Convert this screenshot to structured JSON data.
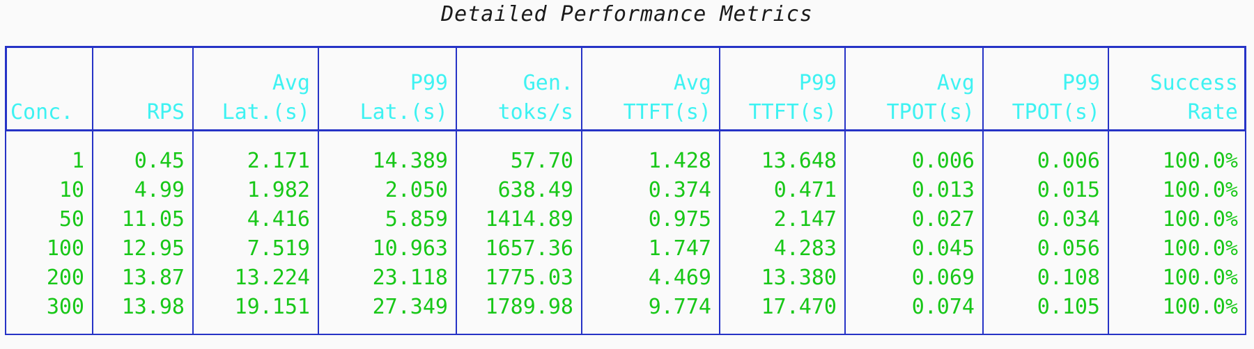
{
  "title": "Detailed Performance Metrics",
  "colors": {
    "border": "#2633c6",
    "header_text": "#3ef2f2",
    "data_text": "#18c718",
    "title_text": "#1a1a1a",
    "background": "#fafafa"
  },
  "columns": [
    {
      "key": "conc",
      "line1": "",
      "line2": "Conc."
    },
    {
      "key": "rps",
      "line1": "",
      "line2": "RPS"
    },
    {
      "key": "avg_lat",
      "line1": "Avg",
      "line2": "Lat.(s)"
    },
    {
      "key": "p99_lat",
      "line1": "P99",
      "line2": "Lat.(s)"
    },
    {
      "key": "gen_toks",
      "line1": "Gen.",
      "line2": "toks/s"
    },
    {
      "key": "avg_ttft",
      "line1": "Avg",
      "line2": "TTFT(s)"
    },
    {
      "key": "p99_ttft",
      "line1": "P99",
      "line2": "TTFT(s)"
    },
    {
      "key": "avg_tpot",
      "line1": "Avg",
      "line2": "TPOT(s)"
    },
    {
      "key": "p99_tpot",
      "line1": "P99",
      "line2": "TPOT(s)"
    },
    {
      "key": "success",
      "line1": "Success",
      "line2": "Rate"
    }
  ],
  "rows": [
    [
      "1",
      "0.45",
      "2.171",
      "14.389",
      "57.70",
      "1.428",
      "13.648",
      "0.006",
      "0.006",
      "100.0%"
    ],
    [
      "10",
      "4.99",
      "1.982",
      "2.050",
      "638.49",
      "0.374",
      "0.471",
      "0.013",
      "0.015",
      "100.0%"
    ],
    [
      "50",
      "11.05",
      "4.416",
      "5.859",
      "1414.89",
      "0.975",
      "2.147",
      "0.027",
      "0.034",
      "100.0%"
    ],
    [
      "100",
      "12.95",
      "7.519",
      "10.963",
      "1657.36",
      "1.747",
      "4.283",
      "0.045",
      "0.056",
      "100.0%"
    ],
    [
      "200",
      "13.87",
      "13.224",
      "23.118",
      "1775.03",
      "4.469",
      "13.380",
      "0.069",
      "0.108",
      "100.0%"
    ],
    [
      "300",
      "13.98",
      "19.151",
      "27.349",
      "1789.98",
      "9.774",
      "17.470",
      "0.074",
      "0.105",
      "100.0%"
    ]
  ]
}
